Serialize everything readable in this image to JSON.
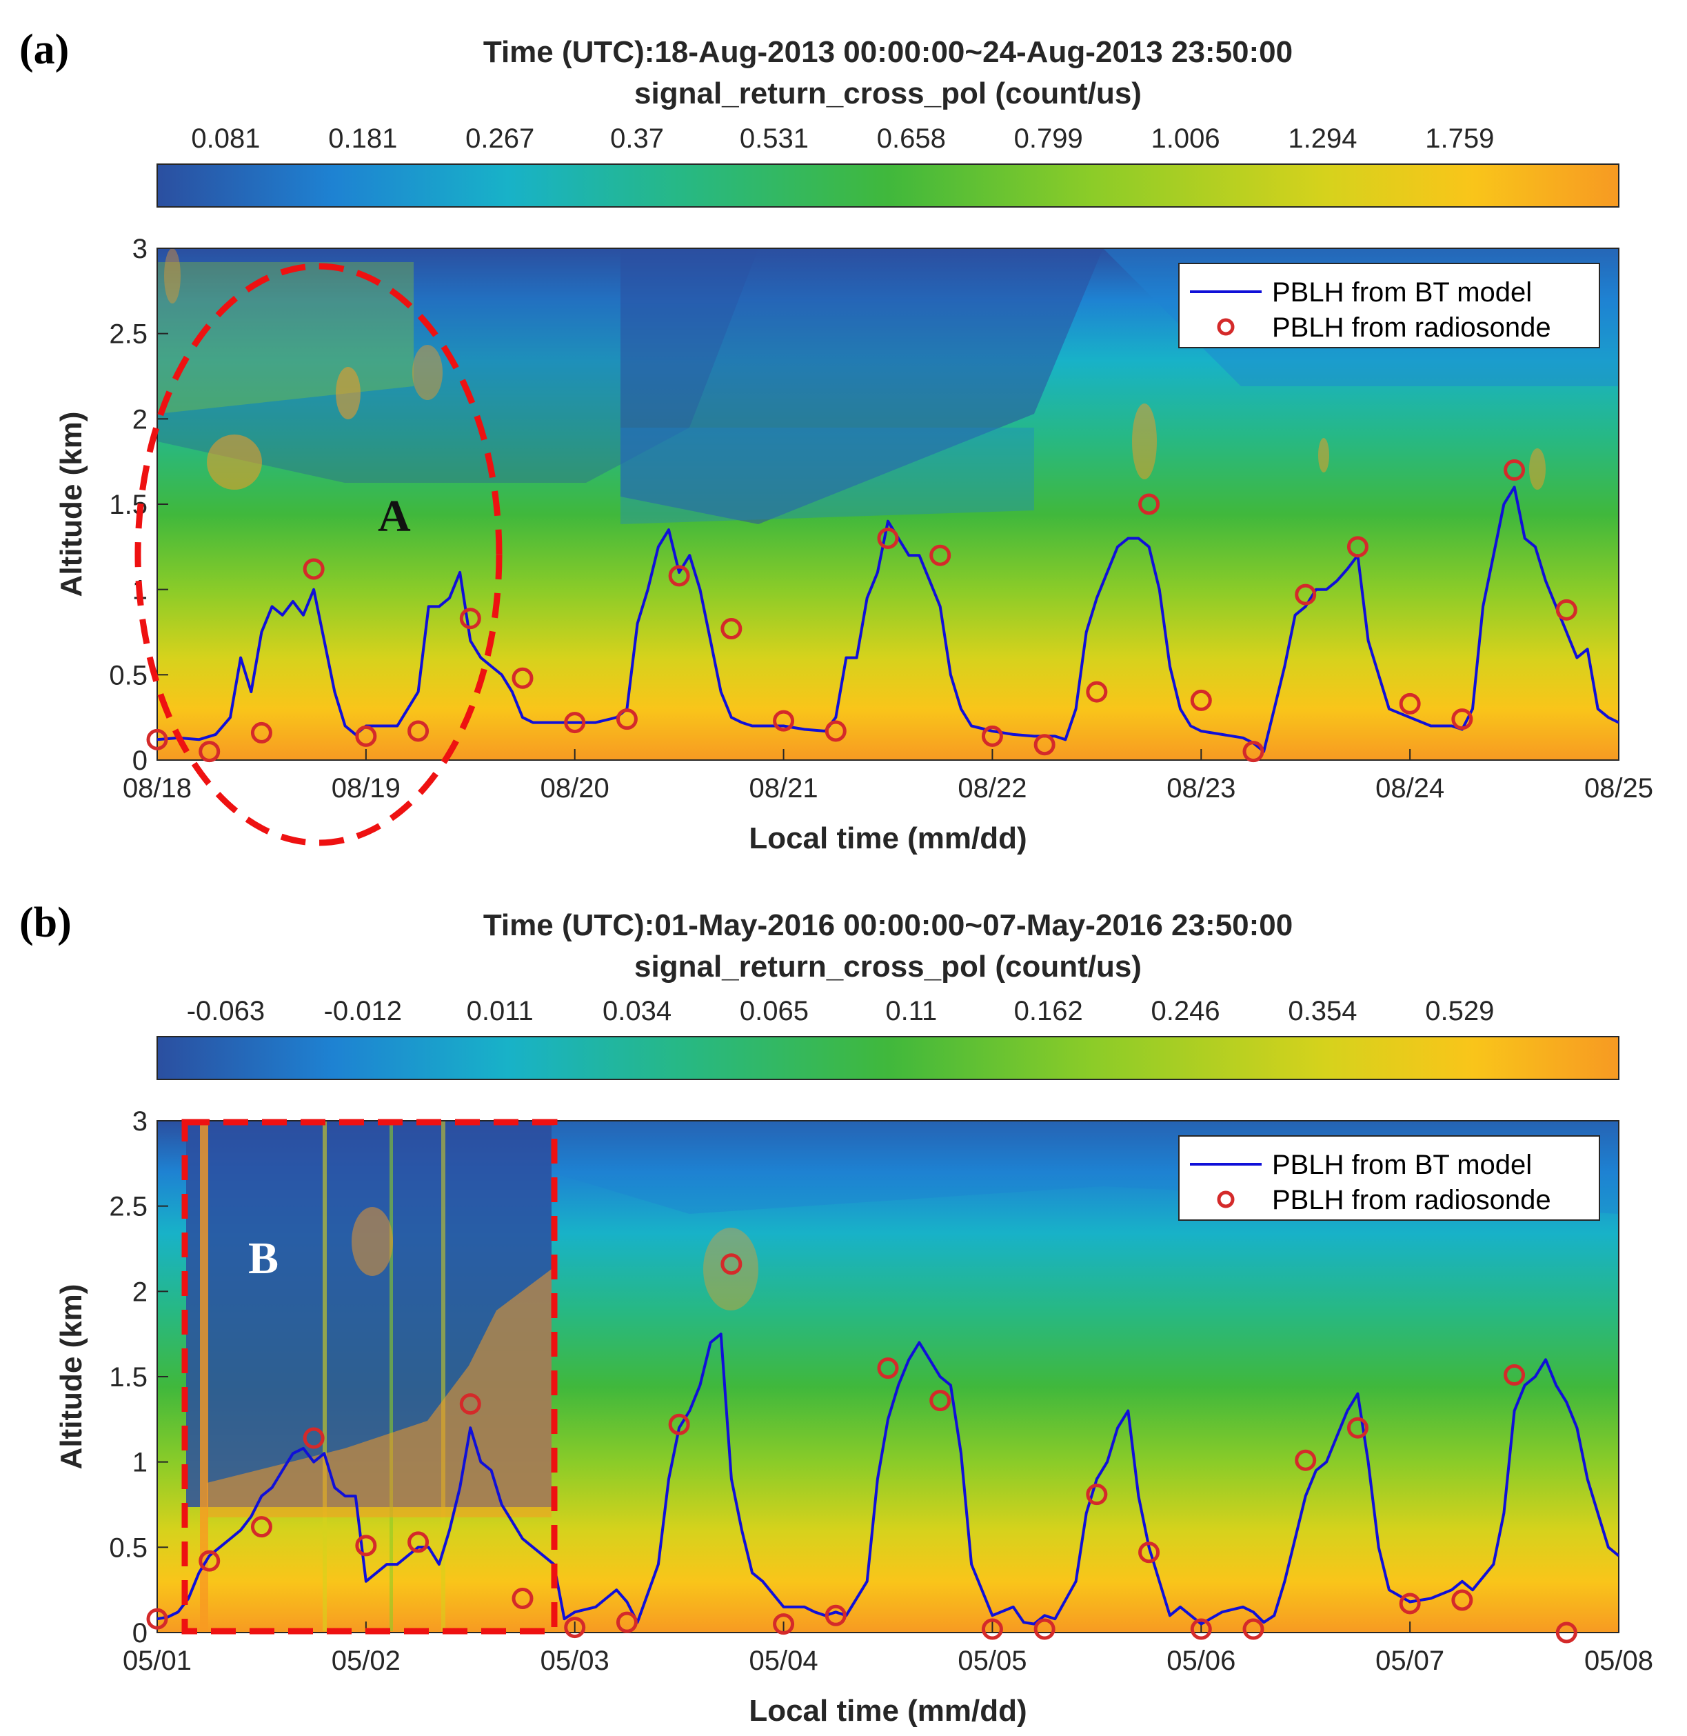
{
  "colors": {
    "pbl_line": "#1010d8",
    "radiosonde": "#d42a2a",
    "highlight": "#ee1111",
    "axis": "#262626",
    "colormap": [
      "#2b4fa0",
      "#1e82d2",
      "#18b2c8",
      "#27b884",
      "#40b83c",
      "#8ccc28",
      "#d6d21c",
      "#f9c51a",
      "#f79a22"
    ]
  },
  "chart_data": [
    {
      "type": "heatmap",
      "panel_label": "(a)",
      "title": "Time (UTC):18-Aug-2013 00:00:00~24-Aug-2013 23:50:00",
      "subtitle": "signal_return_cross_pol (count/us)",
      "colorbar_ticks": [
        "0.081",
        "0.181",
        "0.267",
        "0.37",
        "0.531",
        "0.658",
        "0.799",
        "1.006",
        "1.294",
        "1.759"
      ],
      "xlabel": "Local time (mm/dd)",
      "ylabel": "Altitude (km)",
      "xlim": [
        0,
        7
      ],
      "ylim": [
        0,
        3
      ],
      "xticks": [
        "08/18",
        "08/19",
        "08/20",
        "08/21",
        "08/22",
        "08/23",
        "08/24",
        "08/25"
      ],
      "yticks": [
        "0",
        "0.5",
        "1",
        "1.5",
        "2",
        "2.5",
        "3"
      ],
      "legend": {
        "placement": "top-right",
        "line_label": "PBLH from BT model",
        "marker_label": "PBLH from radiosonde"
      },
      "annotation": {
        "label": "A",
        "shape": "dashed-ellipse",
        "x_range": [
          -0.08,
          1.62
        ],
        "y_range": [
          -0.48,
          2.9
        ]
      },
      "series": [
        {
          "name": "PBLH from BT model",
          "x": [
            0,
            0.1,
            0.2,
            0.28,
            0.35,
            0.4,
            0.45,
            0.5,
            0.55,
            0.6,
            0.65,
            0.7,
            0.75,
            0.8,
            0.85,
            0.9,
            0.95,
            1.0,
            1.05,
            1.1,
            1.15,
            1.2,
            1.25,
            1.3,
            1.35,
            1.4,
            1.45,
            1.5,
            1.55,
            1.6,
            1.65,
            1.7,
            1.75,
            1.8,
            1.85,
            1.9,
            1.95,
            2.0,
            2.1,
            2.2,
            2.25,
            2.3,
            2.35,
            2.4,
            2.45,
            2.5,
            2.55,
            2.6,
            2.65,
            2.7,
            2.75,
            2.8,
            2.85,
            2.9,
            3.0,
            3.1,
            3.2,
            3.25,
            3.3,
            3.35,
            3.4,
            3.45,
            3.5,
            3.55,
            3.6,
            3.65,
            3.7,
            3.75,
            3.8,
            3.85,
            3.9,
            4.0,
            4.1,
            4.2,
            4.3,
            4.35,
            4.4,
            4.45,
            4.5,
            4.55,
            4.6,
            4.65,
            4.7,
            4.75,
            4.8,
            4.85,
            4.9,
            4.95,
            5.0,
            5.1,
            5.2,
            5.25,
            5.3,
            5.35,
            5.4,
            5.45,
            5.5,
            5.55,
            5.6,
            5.65,
            5.7,
            5.75,
            5.8,
            5.85,
            5.9,
            6.0,
            6.1,
            6.2,
            6.25,
            6.3,
            6.35,
            6.4,
            6.45,
            6.5,
            6.55,
            6.6,
            6.65,
            6.7,
            6.75,
            6.8,
            6.85,
            6.9,
            6.95,
            7.0
          ],
          "y": [
            0.12,
            0.13,
            0.12,
            0.15,
            0.25,
            0.6,
            0.4,
            0.75,
            0.9,
            0.85,
            0.93,
            0.85,
            1.0,
            0.7,
            0.4,
            0.2,
            0.15,
            0.2,
            0.2,
            0.2,
            0.2,
            0.3,
            0.4,
            0.9,
            0.9,
            0.95,
            1.1,
            0.7,
            0.6,
            0.55,
            0.5,
            0.4,
            0.25,
            0.22,
            0.22,
            0.22,
            0.22,
            0.22,
            0.22,
            0.25,
            0.3,
            0.8,
            1.0,
            1.25,
            1.35,
            1.1,
            1.2,
            1.0,
            0.7,
            0.4,
            0.25,
            0.22,
            0.2,
            0.2,
            0.2,
            0.18,
            0.17,
            0.25,
            0.6,
            0.6,
            0.95,
            1.1,
            1.4,
            1.3,
            1.2,
            1.2,
            1.05,
            0.9,
            0.5,
            0.3,
            0.2,
            0.17,
            0.15,
            0.14,
            0.14,
            0.12,
            0.3,
            0.75,
            0.95,
            1.1,
            1.25,
            1.3,
            1.3,
            1.25,
            1.0,
            0.55,
            0.3,
            0.2,
            0.17,
            0.15,
            0.13,
            0.1,
            0.05,
            0.3,
            0.55,
            0.85,
            0.9,
            1.0,
            1.0,
            1.05,
            1.12,
            1.2,
            0.7,
            0.5,
            0.3,
            0.25,
            0.2,
            0.2,
            0.18,
            0.3,
            0.9,
            1.2,
            1.5,
            1.6,
            1.3,
            1.25,
            1.05,
            0.9,
            0.75,
            0.6,
            0.65,
            0.3,
            0.25,
            0.22
          ]
        },
        {
          "name": "PBLH from radiosonde",
          "x": [
            0.0,
            0.25,
            0.5,
            0.75,
            1.0,
            1.25,
            1.5,
            1.75,
            2.0,
            2.25,
            2.5,
            2.75,
            3.0,
            3.25,
            3.5,
            3.75,
            4.0,
            4.25,
            4.5,
            4.75,
            5.0,
            5.25,
            5.5,
            5.75,
            6.0,
            6.25,
            6.5,
            6.75
          ],
          "y": [
            0.12,
            0.05,
            0.16,
            1.12,
            0.14,
            0.17,
            0.83,
            0.48,
            0.22,
            0.24,
            1.08,
            0.77,
            0.23,
            0.17,
            1.3,
            1.2,
            0.14,
            0.09,
            0.4,
            1.5,
            0.35,
            0.05,
            0.97,
            1.25,
            0.33,
            0.24,
            1.7,
            0.88
          ]
        }
      ]
    },
    {
      "type": "heatmap",
      "panel_label": "(b)",
      "title": "Time (UTC):01-May-2016 00:00:00~07-May-2016 23:50:00",
      "subtitle": "signal_return_cross_pol (count/us)",
      "colorbar_ticks": [
        "-0.063",
        "-0.012",
        "0.011",
        "0.034",
        "0.065",
        "0.11",
        "0.162",
        "0.246",
        "0.354",
        "0.529"
      ],
      "xlabel": "Local time (mm/dd)",
      "ylabel": "Altitude (km)",
      "xlim": [
        0,
        7
      ],
      "ylim": [
        0,
        3
      ],
      "xticks": [
        "05/01",
        "05/02",
        "05/03",
        "05/04",
        "05/05",
        "05/06",
        "05/07",
        "05/08"
      ],
      "yticks": [
        "0",
        "0.5",
        "1",
        "1.5",
        "2",
        "2.5",
        "3"
      ],
      "legend": {
        "placement": "top-right",
        "line_label": "PBLH from BT model",
        "marker_label": "PBLH from radiosonde"
      },
      "annotation": {
        "label": "B",
        "shape": "dashed-rectangle",
        "x_range": [
          0.12,
          1.9
        ],
        "y_range": [
          0.0,
          3.0
        ]
      },
      "series": [
        {
          "name": "PBLH from BT model",
          "x": [
            0,
            0.05,
            0.1,
            0.15,
            0.2,
            0.25,
            0.3,
            0.35,
            0.4,
            0.45,
            0.5,
            0.55,
            0.6,
            0.65,
            0.7,
            0.75,
            0.8,
            0.85,
            0.9,
            0.95,
            1.0,
            1.05,
            1.1,
            1.15,
            1.2,
            1.25,
            1.3,
            1.35,
            1.4,
            1.45,
            1.5,
            1.55,
            1.6,
            1.65,
            1.7,
            1.75,
            1.8,
            1.85,
            1.9,
            1.95,
            2.0,
            2.1,
            2.15,
            2.2,
            2.25,
            2.3,
            2.4,
            2.45,
            2.5,
            2.55,
            2.6,
            2.65,
            2.7,
            2.75,
            2.8,
            2.85,
            2.9,
            3.0,
            3.1,
            3.15,
            3.2,
            3.25,
            3.3,
            3.4,
            3.45,
            3.5,
            3.55,
            3.6,
            3.65,
            3.7,
            3.75,
            3.8,
            3.85,
            3.9,
            4.0,
            4.1,
            4.15,
            4.2,
            4.25,
            4.3,
            4.4,
            4.45,
            4.5,
            4.55,
            4.6,
            4.65,
            4.7,
            4.75,
            4.8,
            4.85,
            4.9,
            5.0,
            5.1,
            5.2,
            5.25,
            5.3,
            5.35,
            5.4,
            5.5,
            5.55,
            5.6,
            5.65,
            5.7,
            5.75,
            5.8,
            5.85,
            5.9,
            6.0,
            6.1,
            6.2,
            6.25,
            6.3,
            6.4,
            6.45,
            6.5,
            6.55,
            6.6,
            6.65,
            6.7,
            6.75,
            6.8,
            6.85,
            6.9,
            6.95,
            7.0
          ],
          "y": [
            0.08,
            0.09,
            0.12,
            0.2,
            0.35,
            0.45,
            0.5,
            0.55,
            0.6,
            0.68,
            0.8,
            0.85,
            0.95,
            1.05,
            1.08,
            1.0,
            1.05,
            0.85,
            0.8,
            0.8,
            0.3,
            0.35,
            0.4,
            0.4,
            0.45,
            0.5,
            0.5,
            0.4,
            0.6,
            0.85,
            1.2,
            1.0,
            0.95,
            0.75,
            0.65,
            0.55,
            0.5,
            0.45,
            0.4,
            0.08,
            0.12,
            0.15,
            0.2,
            0.25,
            0.18,
            0.06,
            0.4,
            0.9,
            1.2,
            1.3,
            1.45,
            1.7,
            1.75,
            0.9,
            0.6,
            0.35,
            0.3,
            0.15,
            0.15,
            0.12,
            0.1,
            0.12,
            0.1,
            0.3,
            0.9,
            1.25,
            1.45,
            1.6,
            1.7,
            1.6,
            1.5,
            1.45,
            1.05,
            0.4,
            0.1,
            0.15,
            0.06,
            0.05,
            0.1,
            0.08,
            0.3,
            0.7,
            0.9,
            1.0,
            1.2,
            1.3,
            0.8,
            0.5,
            0.3,
            0.1,
            0.15,
            0.05,
            0.12,
            0.15,
            0.12,
            0.06,
            0.1,
            0.3,
            0.8,
            0.95,
            1.0,
            1.15,
            1.3,
            1.4,
            1.0,
            0.5,
            0.25,
            0.18,
            0.2,
            0.25,
            0.3,
            0.25,
            0.4,
            0.7,
            1.3,
            1.45,
            1.5,
            1.6,
            1.45,
            1.35,
            1.2,
            0.9,
            0.7,
            0.5,
            0.45
          ]
        },
        {
          "name": "PBLH from radiosonde",
          "x": [
            0.0,
            0.25,
            0.5,
            0.75,
            1.0,
            1.25,
            1.5,
            1.75,
            2.0,
            2.25,
            2.5,
            2.75,
            3.0,
            3.25,
            3.5,
            3.75,
            4.0,
            4.25,
            4.5,
            4.75,
            5.0,
            5.25,
            5.5,
            5.75,
            6.0,
            6.25,
            6.5,
            6.75
          ],
          "y": [
            0.08,
            0.42,
            0.62,
            1.14,
            0.51,
            0.53,
            1.34,
            0.2,
            0.03,
            0.06,
            1.22,
            2.16,
            0.05,
            0.1,
            1.55,
            1.36,
            0.02,
            0.02,
            0.81,
            0.47,
            0.02,
            0.02,
            1.01,
            1.2,
            0.17,
            0.19,
            1.51,
            0.0
          ]
        }
      ]
    }
  ]
}
